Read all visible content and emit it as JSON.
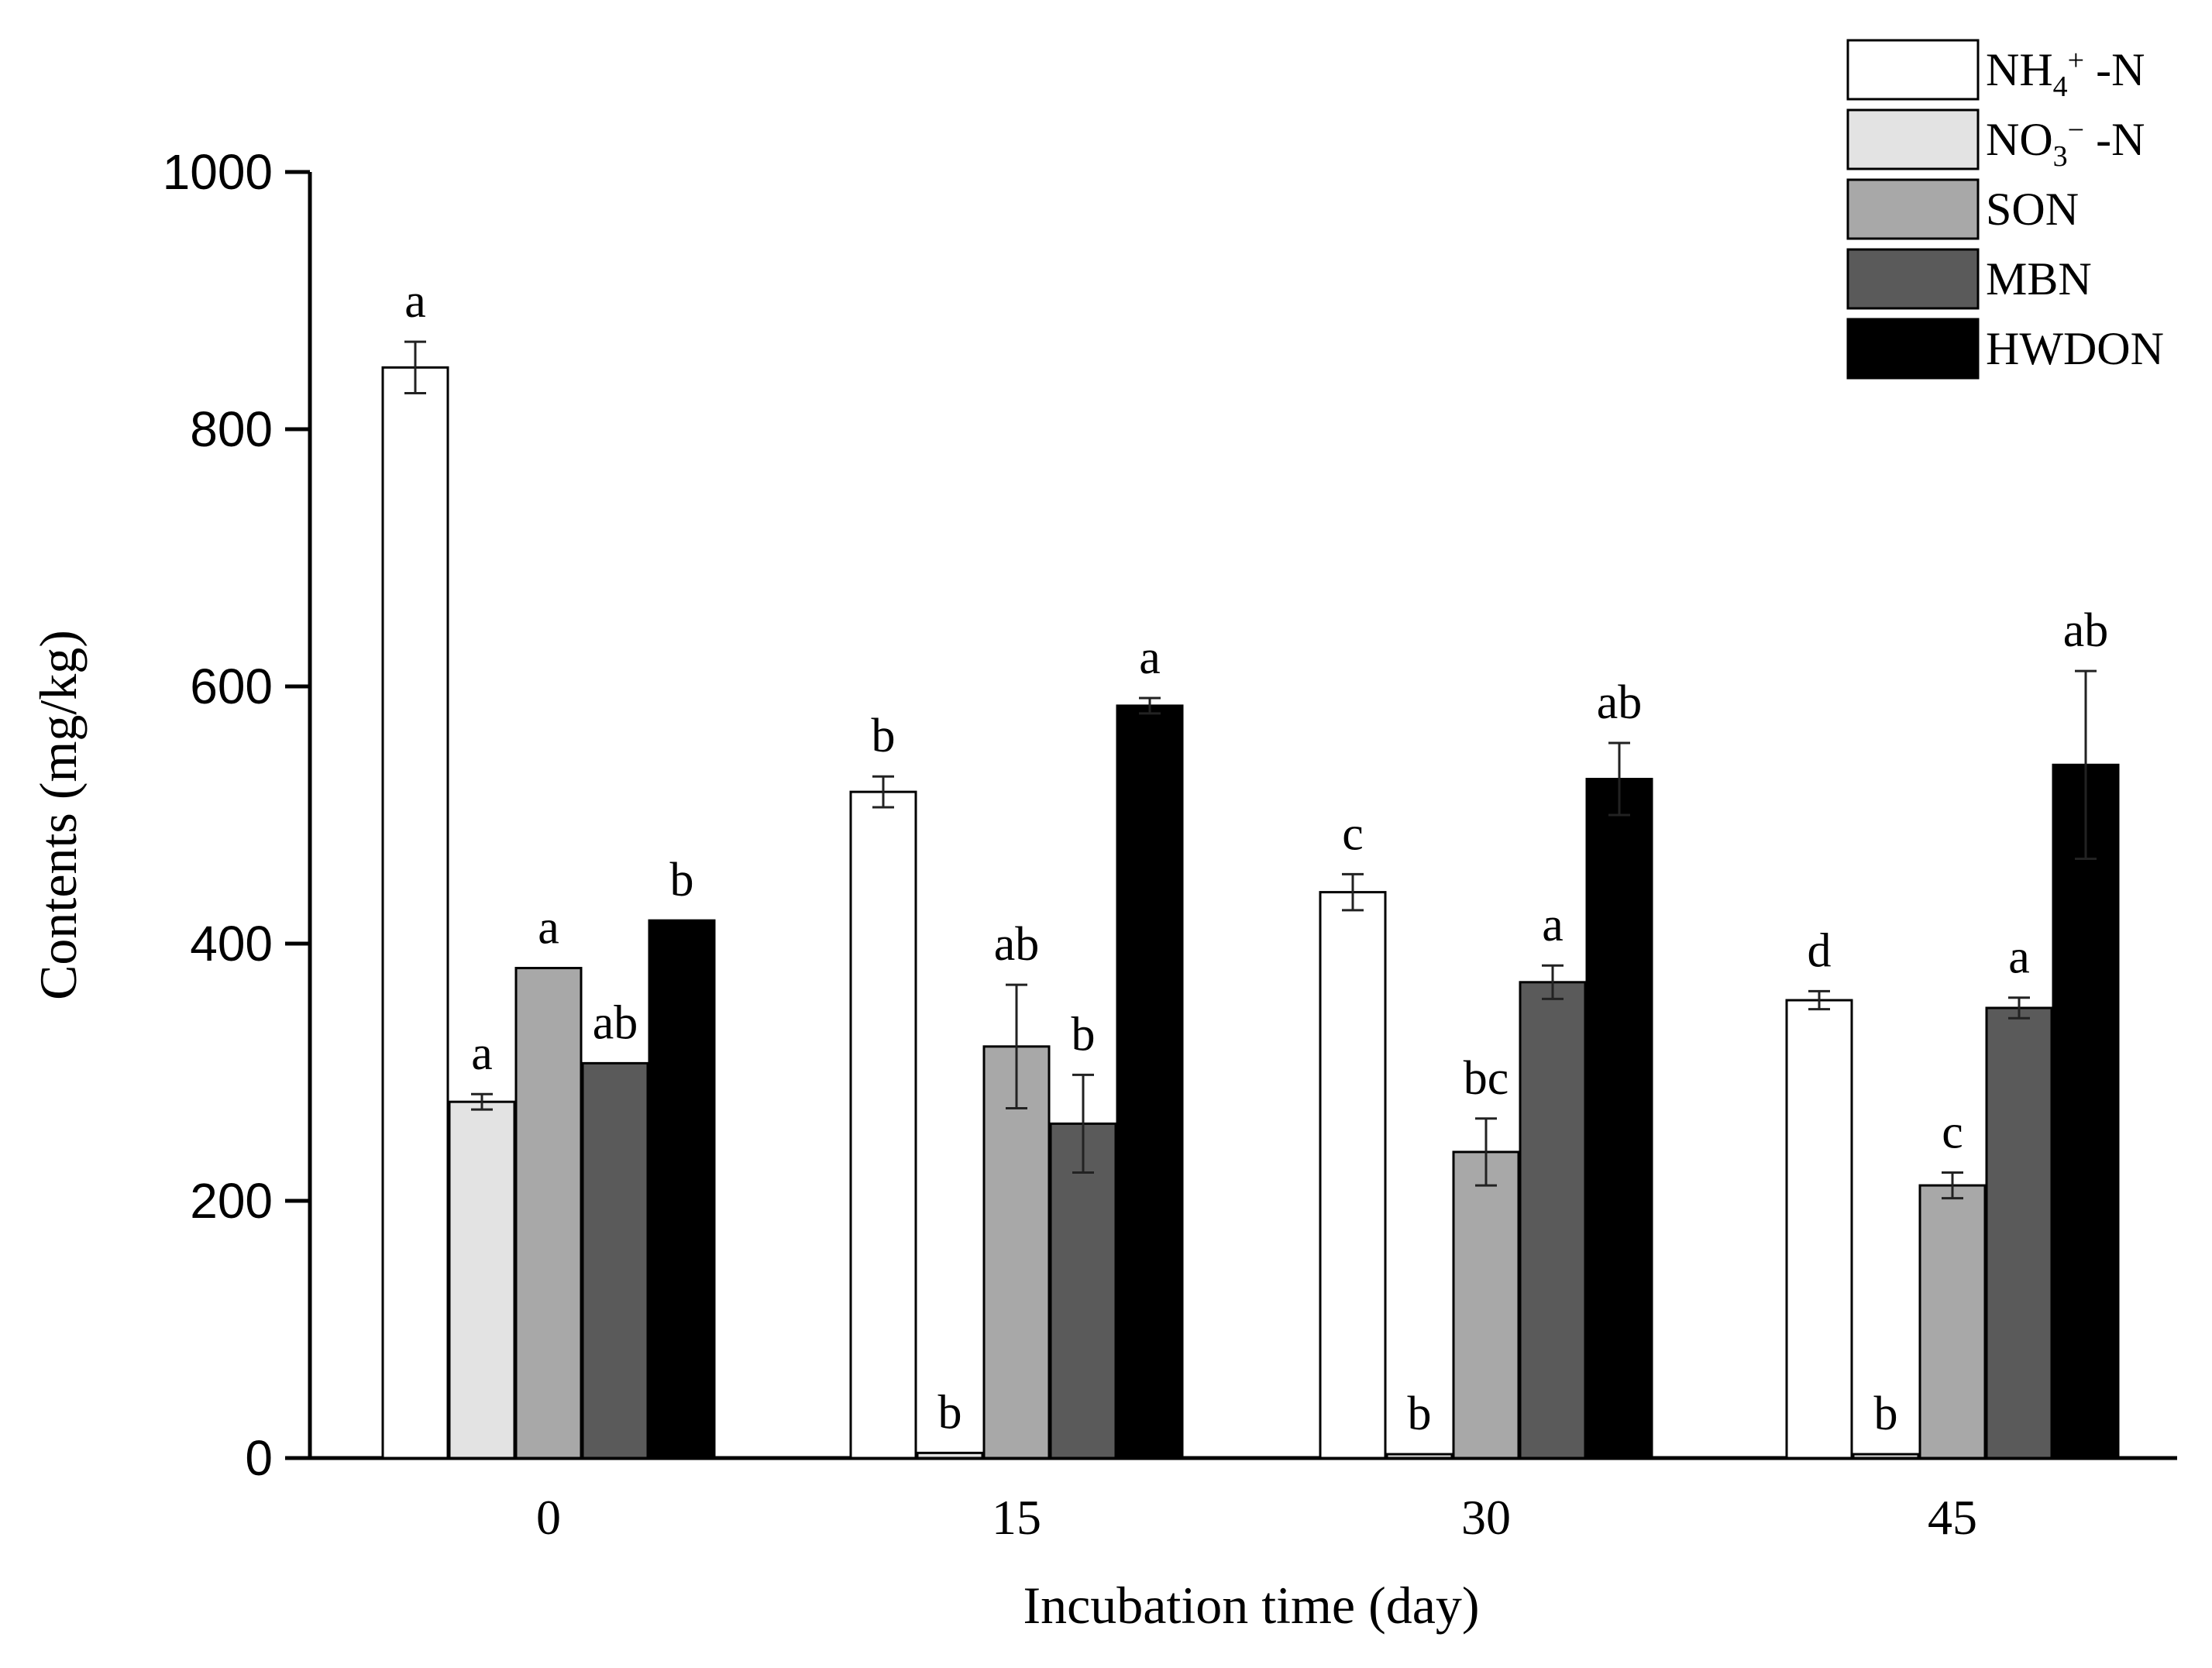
{
  "chart_data": {
    "type": "bar",
    "title": "",
    "xlabel": "Incubation time (day)",
    "ylabel": "Contents (mg/kg)",
    "ylim": [
      0,
      1000
    ],
    "yticks": [
      0,
      200,
      400,
      600,
      800,
      1000
    ],
    "categories": [
      "0",
      "15",
      "30",
      "45"
    ],
    "legend_position": "top-right",
    "series": [
      {
        "name": "NH4+ -N",
        "label_parts": [
          "NH",
          "4",
          "+",
          " -N"
        ],
        "color": "#ffffff",
        "values": [
          848,
          518,
          440,
          356
        ],
        "errors": [
          20,
          12,
          14,
          7
        ],
        "sig": [
          "a",
          "b",
          "c",
          "d"
        ]
      },
      {
        "name": "NO3− -N",
        "label_parts": [
          "NO",
          "3",
          "−",
          " -N"
        ],
        "color": "#e3e3e3",
        "values": [
          277,
          4,
          3,
          3
        ],
        "errors": [
          6,
          0,
          0,
          0
        ],
        "sig": [
          "a",
          "b",
          "b",
          "b"
        ]
      },
      {
        "name": "SON",
        "label_parts": [
          "SON"
        ],
        "color": "#a8a8a8",
        "values": [
          381,
          320,
          238,
          212
        ],
        "errors": [
          0,
          48,
          26,
          10
        ],
        "sig": [
          "a",
          "ab",
          "bc",
          "c"
        ]
      },
      {
        "name": "MBN",
        "label_parts": [
          "MBN"
        ],
        "color": "#5a5a5a",
        "values": [
          307,
          260,
          370,
          350
        ],
        "errors": [
          0,
          38,
          13,
          8
        ],
        "sig": [
          "ab",
          "b",
          "a",
          "a"
        ]
      },
      {
        "name": "HWDON",
        "label_parts": [
          "HWDON"
        ],
        "color": "#000000",
        "values": [
          418,
          585,
          528,
          539
        ],
        "errors": [
          0,
          6,
          28,
          73
        ],
        "sig": [
          "b",
          "a",
          "ab",
          "ab"
        ]
      }
    ]
  }
}
